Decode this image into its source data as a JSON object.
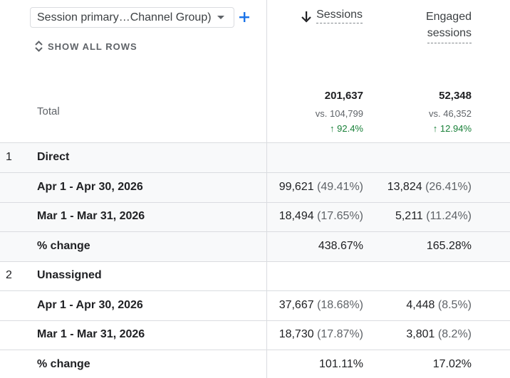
{
  "dimension": {
    "selected": "Session primary…Channel Group)"
  },
  "toolbar": {
    "show_all_rows": "SHOW ALL ROWS"
  },
  "columns": {
    "sessions": "Sessions",
    "engaged_line1": "Engaged",
    "engaged_line2": "sessions"
  },
  "totals": {
    "label": "Total",
    "sessions": {
      "value": "201,637",
      "vs": "vs. 104,799",
      "change": "92.4%"
    },
    "engaged": {
      "value": "52,348",
      "vs": "vs. 46,352",
      "change": "12.94%"
    }
  },
  "groups": [
    {
      "index": "1",
      "name": "Direct",
      "rows": [
        {
          "label": "Apr 1 - Apr 30, 2026",
          "sessions": "99,621",
          "sessions_pct": "(49.41%)",
          "engaged": "13,824",
          "engaged_pct": "(26.41%)"
        },
        {
          "label": "Mar 1 - Mar 31, 2026",
          "sessions": "18,494",
          "sessions_pct": "(17.65%)",
          "engaged": "5,211",
          "engaged_pct": "(11.24%)"
        },
        {
          "label": "% change",
          "sessions": "438.67%",
          "sessions_pct": "",
          "engaged": "165.28%",
          "engaged_pct": ""
        }
      ]
    },
    {
      "index": "2",
      "name": "Unassigned",
      "rows": [
        {
          "label": "Apr 1 - Apr 30, 2026",
          "sessions": "37,667",
          "sessions_pct": "(18.68%)",
          "engaged": "4,448",
          "engaged_pct": "(8.5%)"
        },
        {
          "label": "Mar 1 - Mar 31, 2026",
          "sessions": "18,730",
          "sessions_pct": "(17.87%)",
          "engaged": "3,801",
          "engaged_pct": "(8.2%)"
        },
        {
          "label": "% change",
          "sessions": "101.11%",
          "sessions_pct": "",
          "engaged": "17.02%",
          "engaged_pct": ""
        }
      ]
    }
  ],
  "colors": {
    "positive": "#188038",
    "accent": "#1a73e8",
    "border": "#dadce0",
    "shade": "#f8f9fa"
  }
}
